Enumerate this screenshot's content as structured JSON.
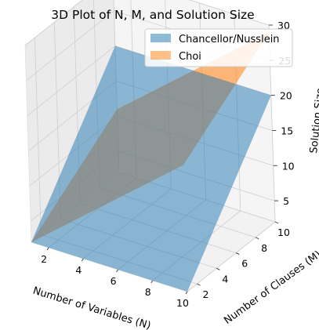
{
  "chart_data": {
    "type": "surface3d",
    "title": "3D Plot of N, M, and Solution Size",
    "xlabel": "Number of Variables (N)",
    "ylabel": "Number of Clauses (M)",
    "zlabel": "Solution Size",
    "xlim": [
      1,
      10
    ],
    "ylim": [
      1,
      10
    ],
    "zlim": [
      2,
      30
    ],
    "x_ticks": [
      2,
      4,
      6,
      8,
      10
    ],
    "y_ticks": [
      2,
      4,
      6,
      8,
      10
    ],
    "z_ticks": [
      5,
      10,
      15,
      20,
      25,
      30
    ],
    "series": [
      {
        "name": "Chancellor/Nusslein",
        "color": "#1f77b4",
        "z_corners": {
          "n1m1": 2,
          "n10m1": 2,
          "n1m10": 20,
          "n10m10": 20
        }
      },
      {
        "name": "Choi",
        "color": "#ff7f0e",
        "z_corners": {
          "n1m1": 2,
          "n10m1": 20,
          "n1m10": 11,
          "n10m10": 29
        }
      }
    ],
    "legend_position": "upper-right"
  }
}
